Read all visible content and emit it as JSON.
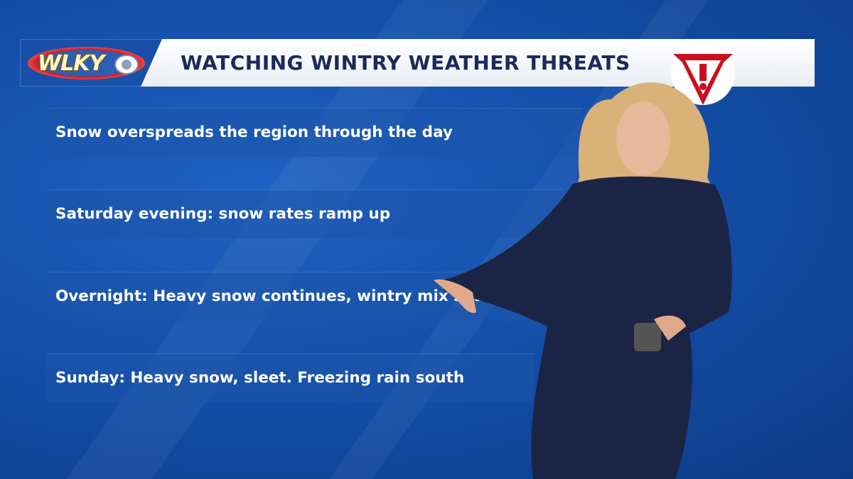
{
  "station_logo": {
    "text": "WLKY",
    "network": "CBS"
  },
  "header": {
    "title": "WATCHING WINTRY WEATHER THREATS",
    "alert_icon": "warning-triangle-icon",
    "alert_color": "#c8101e"
  },
  "bullets": [
    {
      "text": "Snow overspreads the region through the day"
    },
    {
      "text": "Saturday evening: snow rates ramp up"
    },
    {
      "text": "Overnight: Heavy snow continues, wintry mix south"
    },
    {
      "text": "Sunday: Heavy snow, sleet. Freezing rain south"
    }
  ],
  "colors": {
    "background": "#1450ab",
    "title_text": "#1b2a5a",
    "dress": "#1c2445",
    "hair": "#d9b27a"
  }
}
